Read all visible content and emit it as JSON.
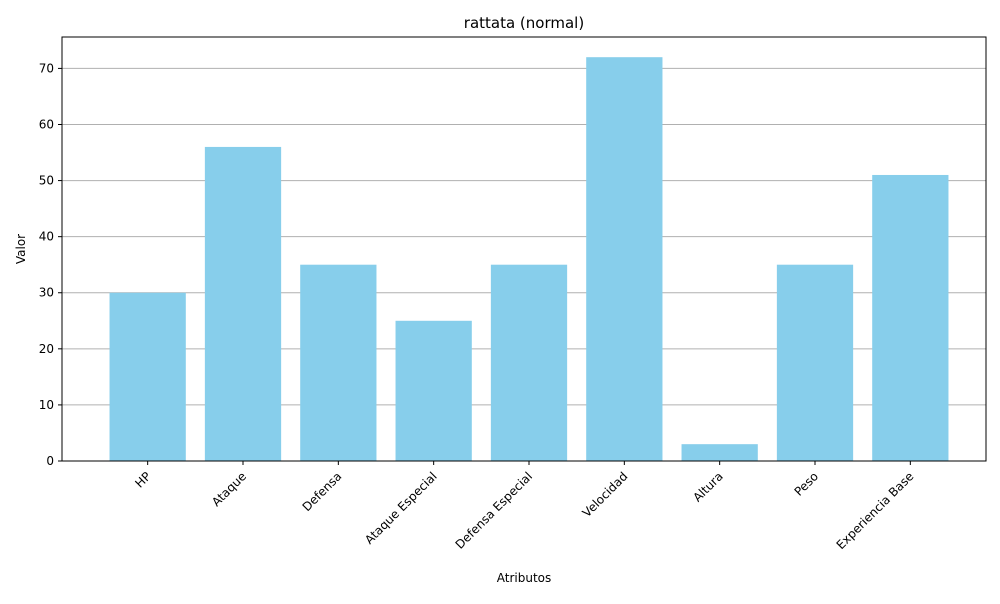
{
  "chart_data": {
    "type": "bar",
    "title": "rattata (normal)",
    "xlabel": "Atributos",
    "ylabel": "Valor",
    "categories": [
      "HP",
      "Ataque",
      "Defensa",
      "Ataque Especial",
      "Defensa Especial",
      "Velocidad",
      "Altura",
      "Peso",
      "Experiencia Base"
    ],
    "values": [
      30,
      56,
      35,
      25,
      35,
      72,
      3,
      35,
      51
    ],
    "ylim": [
      0,
      75.6
    ],
    "yticks": [
      0,
      10,
      20,
      30,
      40,
      50,
      60,
      70
    ],
    "grid": "y",
    "legend": "none",
    "colors": {
      "bar": "#87CEEB",
      "grid": "#b0b0b0",
      "axis": "#000000"
    }
  }
}
